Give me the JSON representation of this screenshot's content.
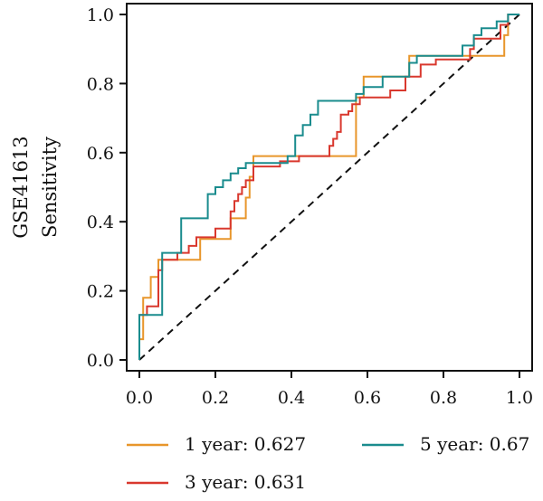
{
  "chart_data": {
    "type": "line",
    "title": "",
    "ylabel_lines": [
      "GSE41613",
      "Sensitivity"
    ],
    "xlabel": "",
    "xlim": [
      0,
      1
    ],
    "ylim": [
      0,
      1
    ],
    "x_ticks": [
      "0.0",
      "0.2",
      "0.4",
      "0.6",
      "0.8",
      "1.0"
    ],
    "y_ticks": [
      "0.0",
      "0.2",
      "0.4",
      "0.6",
      "0.8",
      "1.0"
    ],
    "diagonal": true,
    "grid": false,
    "legend_position": "bottom",
    "series": [
      {
        "name": "1 year: 0.627",
        "color": "#E8962B",
        "points": [
          [
            0.0,
            0.0
          ],
          [
            0.0,
            0.06
          ],
          [
            0.01,
            0.06
          ],
          [
            0.01,
            0.18
          ],
          [
            0.03,
            0.18
          ],
          [
            0.03,
            0.24
          ],
          [
            0.05,
            0.24
          ],
          [
            0.05,
            0.29
          ],
          [
            0.16,
            0.29
          ],
          [
            0.16,
            0.35
          ],
          [
            0.24,
            0.35
          ],
          [
            0.24,
            0.41
          ],
          [
            0.28,
            0.41
          ],
          [
            0.28,
            0.47
          ],
          [
            0.29,
            0.47
          ],
          [
            0.29,
            0.53
          ],
          [
            0.3,
            0.53
          ],
          [
            0.3,
            0.59
          ],
          [
            0.57,
            0.59
          ],
          [
            0.57,
            0.76
          ],
          [
            0.59,
            0.76
          ],
          [
            0.59,
            0.82
          ],
          [
            0.71,
            0.82
          ],
          [
            0.71,
            0.88
          ],
          [
            0.96,
            0.88
          ],
          [
            0.96,
            0.94
          ],
          [
            0.97,
            0.94
          ],
          [
            0.97,
            1.0
          ],
          [
            1.0,
            1.0
          ]
        ]
      },
      {
        "name": "3 year: 0.631",
        "color": "#D9382E",
        "points": [
          [
            0.0,
            0.0
          ],
          [
            0.0,
            0.13
          ],
          [
            0.02,
            0.13
          ],
          [
            0.02,
            0.155
          ],
          [
            0.05,
            0.155
          ],
          [
            0.05,
            0.26
          ],
          [
            0.06,
            0.26
          ],
          [
            0.06,
            0.29
          ],
          [
            0.1,
            0.29
          ],
          [
            0.1,
            0.31
          ],
          [
            0.13,
            0.31
          ],
          [
            0.13,
            0.33
          ],
          [
            0.15,
            0.33
          ],
          [
            0.15,
            0.355
          ],
          [
            0.2,
            0.355
          ],
          [
            0.2,
            0.38
          ],
          [
            0.24,
            0.38
          ],
          [
            0.24,
            0.43
          ],
          [
            0.25,
            0.43
          ],
          [
            0.25,
            0.46
          ],
          [
            0.26,
            0.46
          ],
          [
            0.26,
            0.48
          ],
          [
            0.27,
            0.48
          ],
          [
            0.27,
            0.5
          ],
          [
            0.28,
            0.5
          ],
          [
            0.28,
            0.52
          ],
          [
            0.3,
            0.52
          ],
          [
            0.3,
            0.56
          ],
          [
            0.37,
            0.56
          ],
          [
            0.37,
            0.575
          ],
          [
            0.42,
            0.575
          ],
          [
            0.42,
            0.59
          ],
          [
            0.5,
            0.59
          ],
          [
            0.5,
            0.62
          ],
          [
            0.51,
            0.62
          ],
          [
            0.51,
            0.64
          ],
          [
            0.52,
            0.64
          ],
          [
            0.52,
            0.66
          ],
          [
            0.53,
            0.66
          ],
          [
            0.53,
            0.71
          ],
          [
            0.55,
            0.71
          ],
          [
            0.55,
            0.72
          ],
          [
            0.56,
            0.72
          ],
          [
            0.56,
            0.74
          ],
          [
            0.58,
            0.74
          ],
          [
            0.58,
            0.76
          ],
          [
            0.66,
            0.76
          ],
          [
            0.66,
            0.78
          ],
          [
            0.7,
            0.78
          ],
          [
            0.7,
            0.82
          ],
          [
            0.74,
            0.82
          ],
          [
            0.74,
            0.855
          ],
          [
            0.78,
            0.855
          ],
          [
            0.78,
            0.87
          ],
          [
            0.87,
            0.87
          ],
          [
            0.87,
            0.9
          ],
          [
            0.88,
            0.9
          ],
          [
            0.88,
            0.93
          ],
          [
            0.95,
            0.93
          ],
          [
            0.95,
            0.97
          ],
          [
            0.97,
            0.97
          ],
          [
            0.97,
            1.0
          ],
          [
            1.0,
            1.0
          ]
        ]
      },
      {
        "name": "5 year: 0.67",
        "color": "#1A8C8E",
        "points": [
          [
            0.0,
            0.0
          ],
          [
            0.0,
            0.13
          ],
          [
            0.06,
            0.13
          ],
          [
            0.06,
            0.31
          ],
          [
            0.11,
            0.31
          ],
          [
            0.11,
            0.41
          ],
          [
            0.18,
            0.41
          ],
          [
            0.18,
            0.48
          ],
          [
            0.2,
            0.48
          ],
          [
            0.2,
            0.5
          ],
          [
            0.22,
            0.5
          ],
          [
            0.22,
            0.52
          ],
          [
            0.24,
            0.52
          ],
          [
            0.24,
            0.54
          ],
          [
            0.26,
            0.54
          ],
          [
            0.26,
            0.555
          ],
          [
            0.28,
            0.555
          ],
          [
            0.28,
            0.57
          ],
          [
            0.39,
            0.57
          ],
          [
            0.39,
            0.59
          ],
          [
            0.41,
            0.59
          ],
          [
            0.41,
            0.65
          ],
          [
            0.43,
            0.65
          ],
          [
            0.43,
            0.68
          ],
          [
            0.45,
            0.68
          ],
          [
            0.45,
            0.71
          ],
          [
            0.47,
            0.71
          ],
          [
            0.47,
            0.75
          ],
          [
            0.57,
            0.75
          ],
          [
            0.57,
            0.77
          ],
          [
            0.59,
            0.77
          ],
          [
            0.59,
            0.79
          ],
          [
            0.64,
            0.79
          ],
          [
            0.64,
            0.82
          ],
          [
            0.71,
            0.82
          ],
          [
            0.71,
            0.86
          ],
          [
            0.73,
            0.86
          ],
          [
            0.73,
            0.88
          ],
          [
            0.85,
            0.88
          ],
          [
            0.85,
            0.91
          ],
          [
            0.88,
            0.91
          ],
          [
            0.88,
            0.94
          ],
          [
            0.9,
            0.94
          ],
          [
            0.9,
            0.96
          ],
          [
            0.94,
            0.96
          ],
          [
            0.94,
            0.98
          ],
          [
            0.97,
            0.98
          ],
          [
            0.97,
            1.0
          ],
          [
            1.0,
            1.0
          ]
        ]
      }
    ]
  }
}
